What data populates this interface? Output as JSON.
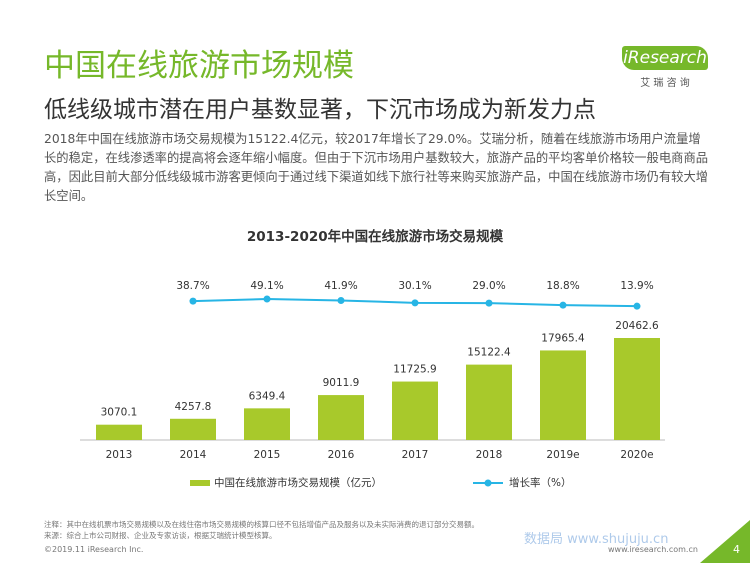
{
  "header": {
    "title": "中国在线旅游市场规模",
    "subtitle": "低线级城市潜在用户基数显著，下沉市场成为新发力点",
    "body": "2018年中国在线旅游市场交易规模为15122.4亿元，较2017年增长了29.0%。艾瑞分析，随着在线旅游市场用户流量增长的稳定，在线渗透率的提高将会逐年缩小幅度。但由于下沉市场用户基数较大，旅游产品的平均客单价格较一般电商商品高，因此目前大部分低线级城市游客更倾向于通过线下渠道如线下旅行社等来购买旅游产品，中国在线旅游市场仍有较大增长空间。",
    "logo": "iResearch",
    "logo_sub": "艾 瑞 咨 询"
  },
  "chart_data": {
    "type": "bar_line",
    "title": "2013-2020年中国在线旅游市场交易规模",
    "categories": [
      "2013",
      "2014",
      "2015",
      "2016",
      "2017",
      "2018",
      "2019e",
      "2020e"
    ],
    "series": [
      {
        "name": "中国在线旅游市场交易规模（亿元）",
        "color": "#a8c92b",
        "values": [
          3070.1,
          4257.8,
          6349.4,
          9011.9,
          11725.9,
          15122.4,
          17965.4,
          20462.6
        ]
      },
      {
        "name": "增长率（%）",
        "color": "#27b5e5",
        "values": [
          null,
          38.7,
          49.1,
          41.9,
          30.1,
          29.0,
          18.8,
          13.9
        ],
        "value_labels": [
          null,
          "38.7%",
          "49.1%",
          "41.9%",
          "30.1%",
          "29.0%",
          "18.8%",
          "13.9%"
        ]
      }
    ]
  },
  "footer": {
    "note": "注释：其中在线机票市场交易规模以及在线住宿市场交易规模的核算口径不包括增值产品及服务以及未实际消费的退订部分交易额。",
    "source": "来源：综合上市公司财报、企业及专家访谈，根据艾瑞统计模型核算。",
    "copyright": "©2019.11 iResearch Inc.",
    "website": "www.iresearch.com.cn",
    "page": "4",
    "watermark": "数据局 www.shujuju.cn"
  }
}
